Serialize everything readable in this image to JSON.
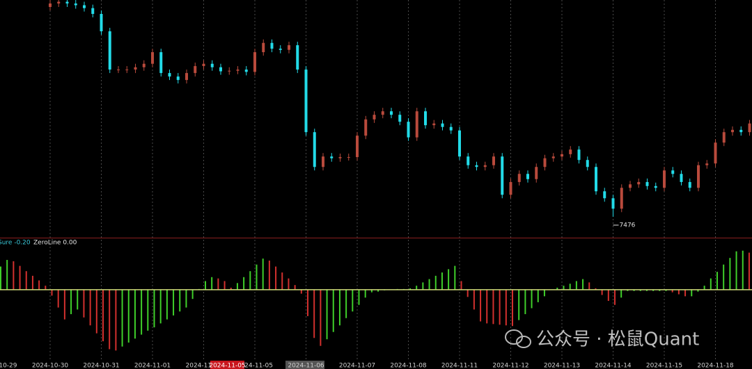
{
  "chart_data": {
    "type": "candlestick",
    "candles": {
      "open": [
        7838,
        7844,
        7847,
        7844,
        7841,
        7836,
        7826,
        7796,
        7730,
        7730,
        7730,
        7734,
        7740,
        7760,
        7724,
        7718,
        7712,
        7724,
        7736,
        7740,
        7734,
        7727,
        7728,
        7730,
        7726,
        7760,
        7776,
        7766,
        7764,
        7772,
        7730,
        7622,
        7562,
        7580,
        7577,
        7579,
        7579,
        7616,
        7644,
        7652,
        7658,
        7652,
        7640,
        7613,
        7658,
        7634,
        7637,
        7631,
        7625,
        7580,
        7565,
        7562,
        7565,
        7580,
        7514,
        7536,
        7550,
        7541,
        7562,
        7577,
        7580,
        7584,
        7592,
        7574,
        7562,
        7520,
        7508,
        7490,
        7526,
        7532,
        7536,
        7529,
        7526,
        7556,
        7550,
        7536,
        7526,
        7565,
        7568,
        7604,
        7622,
        7626,
        7622
      ],
      "high": [
        7850,
        7853,
        7853,
        7850,
        7847,
        7842,
        7832,
        7802,
        7736,
        7736,
        7740,
        7746,
        7766,
        7766,
        7730,
        7724,
        7730,
        7742,
        7746,
        7746,
        7740,
        7734,
        7736,
        7736,
        7766,
        7782,
        7782,
        7772,
        7778,
        7778,
        7736,
        7628,
        7586,
        7586,
        7585,
        7585,
        7622,
        7650,
        7658,
        7664,
        7664,
        7658,
        7646,
        7664,
        7664,
        7643,
        7643,
        7637,
        7631,
        7586,
        7571,
        7571,
        7586,
        7586,
        7542,
        7556,
        7556,
        7568,
        7583,
        7586,
        7590,
        7598,
        7598,
        7580,
        7568,
        7526,
        7514,
        7532,
        7538,
        7542,
        7542,
        7535,
        7562,
        7562,
        7556,
        7542,
        7571,
        7574,
        7610,
        7628,
        7632,
        7632,
        7643
      ],
      "low": [
        7832,
        7838,
        7838,
        7835,
        7830,
        7820,
        7790,
        7724,
        7724,
        7724,
        7724,
        7728,
        7734,
        7718,
        7712,
        7706,
        7706,
        7718,
        7730,
        7728,
        7721,
        7721,
        7722,
        7720,
        7720,
        7754,
        7760,
        7758,
        7758,
        7724,
        7616,
        7556,
        7556,
        7571,
        7571,
        7573,
        7573,
        7610,
        7638,
        7646,
        7646,
        7634,
        7607,
        7607,
        7628,
        7628,
        7625,
        7619,
        7574,
        7559,
        7556,
        7556,
        7559,
        7508,
        7508,
        7530,
        7535,
        7535,
        7556,
        7571,
        7574,
        7578,
        7568,
        7556,
        7514,
        7502,
        7476,
        7484,
        7520,
        7526,
        7523,
        7520,
        7520,
        7544,
        7530,
        7520,
        7520,
        7559,
        7562,
        7598,
        7616,
        7616,
        7616
      ],
      "close": [
        7844,
        7847,
        7844,
        7841,
        7836,
        7826,
        7796,
        7730,
        7730,
        7730,
        7734,
        7740,
        7760,
        7724,
        7718,
        7712,
        7724,
        7736,
        7740,
        7734,
        7727,
        7728,
        7730,
        7726,
        7760,
        7776,
        7766,
        7764,
        7772,
        7730,
        7622,
        7562,
        7580,
        7577,
        7579,
        7579,
        7616,
        7644,
        7652,
        7658,
        7652,
        7640,
        7613,
        7658,
        7634,
        7637,
        7631,
        7625,
        7580,
        7565,
        7562,
        7565,
        7580,
        7514,
        7536,
        7550,
        7541,
        7562,
        7577,
        7580,
        7584,
        7592,
        7574,
        7562,
        7520,
        7508,
        7490,
        7526,
        7532,
        7536,
        7529,
        7526,
        7556,
        7550,
        7536,
        7526,
        7565,
        7568,
        7604,
        7622,
        7626,
        7622,
        7637
      ]
    },
    "up_color": "#b94a3c",
    "down_color": "#22dbe8",
    "ylim": [
      7440,
      7850
    ],
    "x_labels": [
      "10-29",
      "2024-10-30",
      "2024-10-31",
      "2024-11-01",
      "2024-11",
      "24-11-05",
      "2024-11-06",
      "2024-11-07",
      "2024-11-08",
      "2024-11-11",
      "2024-11-12",
      "2024-11-13",
      "2024-11-14",
      "2024-11-15",
      "2024-11-18"
    ],
    "crosshair_label": "2024-11-05",
    "indicator": {
      "type": "histogram",
      "label": "Sure -0.20",
      "zeroline_label": "ZeroLine 0.00",
      "zeroline": 0,
      "zeroline_color": "#cfdc7a",
      "up_color": "#3fcf2a",
      "down_color": "#d3302e",
      "ylim": [
        -1.0,
        0.65
      ],
      "values": [
        0.35,
        0.45,
        0.43,
        0.36,
        0.28,
        0.21,
        0.14,
        0.06,
        -0.09,
        -0.27,
        -0.45,
        -0.37,
        -0.3,
        -0.42,
        -0.54,
        -0.66,
        -0.78,
        -0.9,
        -0.92,
        -0.86,
        -0.8,
        -0.74,
        -0.68,
        -0.62,
        -0.57,
        -0.51,
        -0.45,
        -0.39,
        -0.33,
        -0.27,
        -0.14,
        0.01,
        0.13,
        0.19,
        0.17,
        0.13,
        0.03,
        0.1,
        0.19,
        0.28,
        0.38,
        0.47,
        0.44,
        0.35,
        0.26,
        0.17,
        0.07,
        -0.06,
        -0.4,
        -0.73,
        -0.85,
        -0.75,
        -0.64,
        -0.54,
        -0.43,
        -0.33,
        -0.23,
        -0.12,
        -0.04,
        -0.03,
        -0.01,
        0.0,
        0.01,
        0.01,
        0.02,
        0.06,
        0.11,
        0.16,
        0.21,
        0.26,
        0.31,
        0.36,
        0.13,
        -0.11,
        -0.3,
        -0.48,
        -0.51,
        -0.52,
        -0.53,
        -0.54,
        -0.55,
        -0.46,
        -0.37,
        -0.28,
        -0.19,
        -0.1,
        0.0,
        0.03,
        0.06,
        0.09,
        0.13,
        0.16,
        0.11,
        0.02,
        -0.08,
        -0.17,
        -0.23,
        -0.12,
        -0.02,
        -0.02,
        -0.02,
        -0.02,
        -0.02,
        -0.02,
        -0.02,
        -0.04,
        -0.07,
        -0.1,
        -0.1,
        -0.03,
        0.06,
        0.17,
        0.27,
        0.38,
        0.48,
        0.58,
        0.59,
        0.56
      ]
    },
    "watermark": "公众号 · 松鼠Quant"
  }
}
